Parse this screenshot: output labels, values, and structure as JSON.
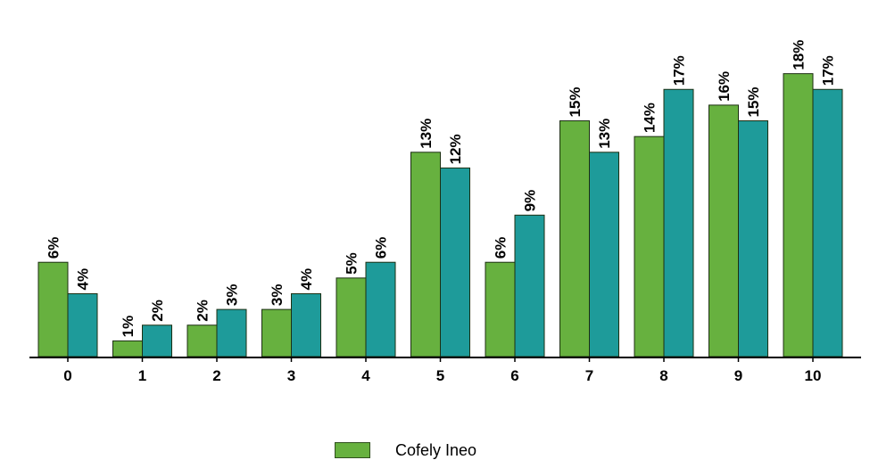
{
  "chart_data": {
    "type": "bar",
    "categories": [
      "0",
      "1",
      "2",
      "3",
      "4",
      "5",
      "6",
      "7",
      "8",
      "9",
      "10"
    ],
    "series": [
      {
        "name": "Cofely Ineo",
        "color": "#67b13f",
        "values": [
          6,
          1,
          2,
          3,
          5,
          13,
          6,
          15,
          14,
          16,
          18
        ],
        "labels": [
          "6%",
          "1%",
          "2%",
          "3%",
          "5%",
          "13%",
          "6%",
          "15%",
          "14%",
          "16%",
          "18%"
        ]
      },
      {
        "color": "#1e9b9a",
        "values": [
          4,
          2,
          3,
          4,
          6,
          12,
          9,
          13,
          17,
          15,
          17
        ],
        "labels": [
          "4%",
          "2%",
          "3%",
          "4%",
          "6%",
          "12%",
          "9%",
          "13%",
          "17%",
          "15%",
          "17%"
        ]
      }
    ],
    "ylim": [
      0,
      19
    ],
    "grid": false,
    "legend": "bottom-center"
  }
}
